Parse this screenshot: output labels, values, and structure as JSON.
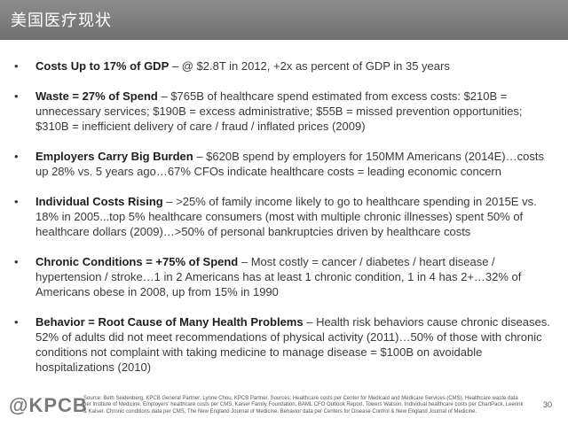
{
  "header": {
    "title": "美国医疗现状"
  },
  "bullet_char": "•",
  "bullets": [
    {
      "heading": "Costs Up to 17% of GDP",
      "text": " – @ $2.8T in 2012, +2x as percent of GDP in 35 years"
    },
    {
      "heading": "Waste = 27% of Spend",
      "text": " – $765B of healthcare spend estimated from excess costs: $210B = unnecessary services; $190B = excess administrative; $55B = missed prevention opportunities; $310B = inefficient delivery of care / fraud / inflated prices (2009)"
    },
    {
      "heading": "Employers Carry Big Burden",
      "text": " – $620B spend by employers for 150MM Americans (2014E)…costs up 28% vs. 5 years ago…67% CFOs indicate healthcare costs = leading economic concern"
    },
    {
      "heading": "Individual Costs Rising",
      "text": " – >25% of family income likely to go to healthcare spending in 2015E vs. 18% in 2005...top 5% healthcare consumers (most with multiple chronic illnesses) spent 50% of healthcare dollars (2009)…>50% of personal bankruptcies driven by healthcare costs"
    },
    {
      "heading": "Chronic Conditions = +75% of Spend",
      "text": " – Most costly = cancer / diabetes / heart disease / hypertension / stroke…1 in 2 Americans has at least 1 chronic condition, 1 in 4 has 2+…32% of Americans obese in 2008, up from 15% in 1990"
    },
    {
      "heading": "Behavior = Root Cause of Many Health Problems",
      "text": " – Health risk behaviors cause chronic diseases. 52% of adults did not meet recommendations of physical activity (2011)…50% of those with chronic conditions not complaint with taking medicine to manage disease = $100B on avoidable hospitalizations (2010)"
    }
  ],
  "footer": {
    "logo": "@KPCB",
    "source": "Source: Beth Seidenberg, KPCB General Partner; Lynne Chou, KPCB Partner. Sources: Healthcare costs per Center for Medicaid and Medicare Services (CMS). Healthcare waste data per Institute of Medicine. Employers' healthcare costs per CMS, Kaiser Family Foundation, BAML CFO Outlook Report, Towers Watson. Individual healthcare costs per ChartPack, Leerink & Kaiser. Chronic conditions data per CMS, The New England Journal of Medicine. Behavior data per Centers for Disease Control & New England Journal of Medicine.",
    "page_number": "30"
  }
}
